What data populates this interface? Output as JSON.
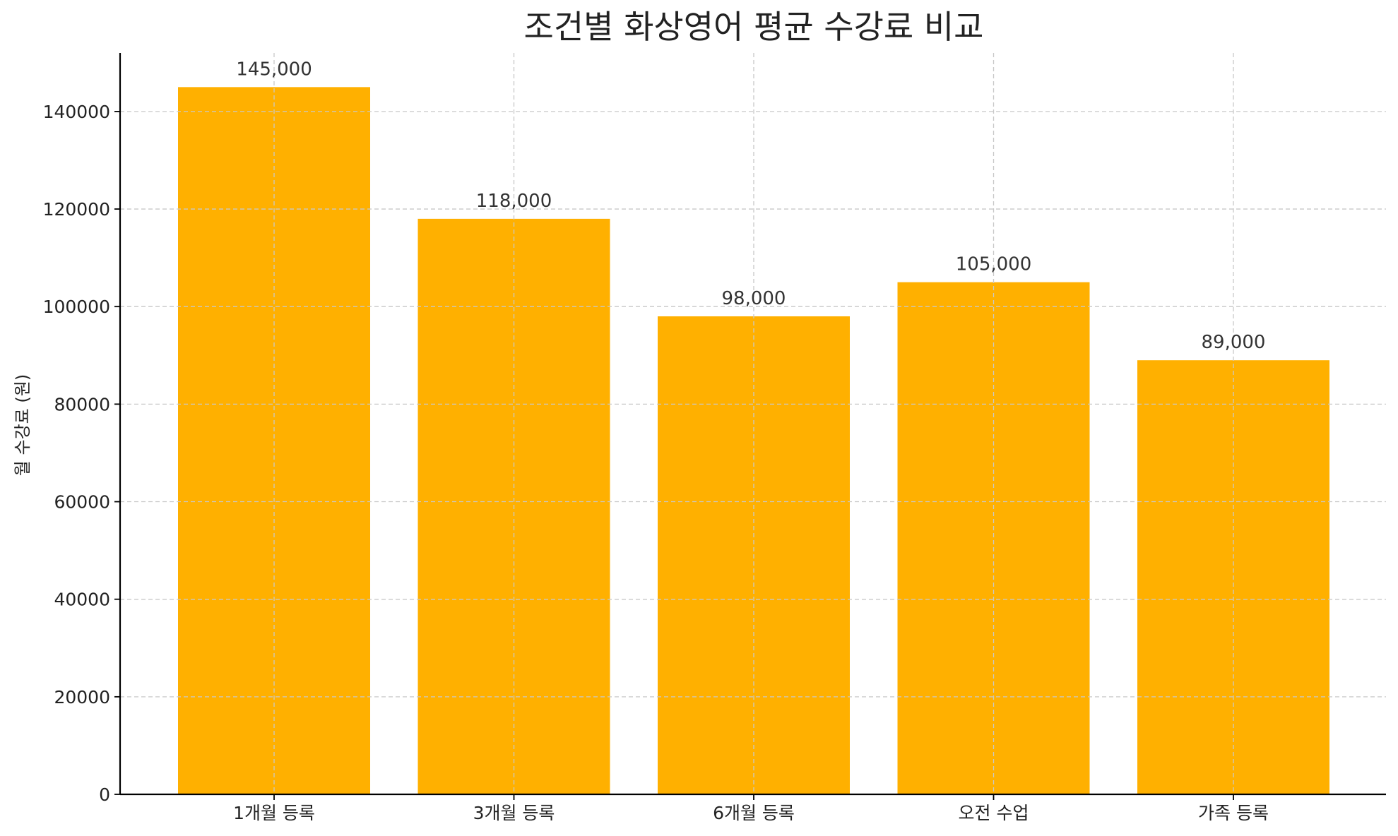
{
  "chart_data": {
    "type": "bar",
    "title": "조건별 화상영어 평균 수강료 비교",
    "xlabel": "",
    "ylabel": "월 수강료 (원)",
    "categories": [
      "1개월 등록",
      "3개월 등록",
      "6개월 등록",
      "오전 수업",
      "가족 등록"
    ],
    "values": [
      145000,
      118000,
      98000,
      105000,
      89000
    ],
    "data_labels": [
      "145,000",
      "118,000",
      "98,000",
      "105,000",
      "89,000"
    ],
    "ylim": [
      0,
      152000
    ],
    "yticks": [
      0,
      20000,
      40000,
      60000,
      80000,
      100000,
      120000,
      140000
    ],
    "ytick_labels": [
      "0",
      "20000",
      "40000",
      "60000",
      "80000",
      "100000",
      "120000",
      "140000"
    ],
    "grid": true,
    "colors": {
      "bar": "#FFB000",
      "grid": "#c8c8c8",
      "axis": "#000000",
      "text": "#222222",
      "label": "#333333"
    }
  }
}
